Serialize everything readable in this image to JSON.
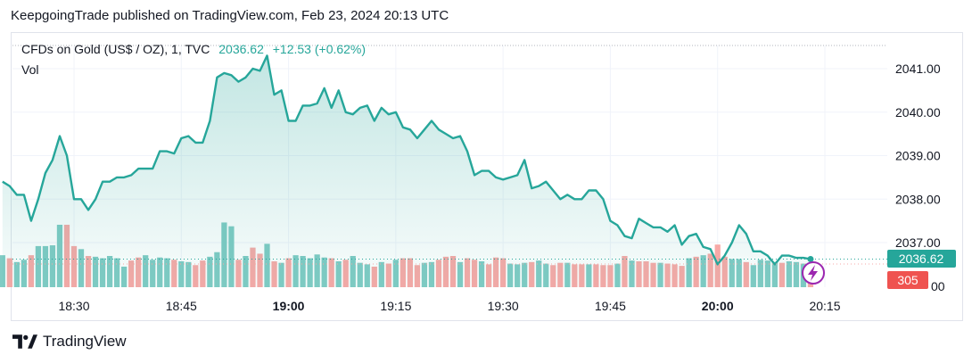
{
  "header": {
    "text": "KeepgoingTrade published on TradingView.com, Feb 23, 2024 20:13 UTC"
  },
  "legend": {
    "symbol": "CFDs on Gold (US$ / OZ), 1, TVC",
    "price": "2036.62",
    "change": "+12.53 (+0.62%)"
  },
  "volume_label": "Vol",
  "footer": {
    "brand": "TradingView",
    "logo_icon": "tradingview-logo-icon"
  },
  "badges": {
    "price": "2036.62",
    "volume": "305",
    "price_color": "#26a69a",
    "volume_color": "#ef5350"
  },
  "colors": {
    "line": "#26a69a",
    "up_volume": "#80cbc4",
    "down_volume": "#f7a9a7",
    "grid": "#f0f3fa"
  },
  "icons": {
    "indicator": "lightning-icon"
  },
  "chart_data": [
    {
      "type": "area",
      "title": "CFDs on Gold (US$ / OZ), 1, TVC",
      "xlabel": "",
      "ylabel": "",
      "x_ticks": [
        "18:30",
        "18:45",
        "19:00",
        "19:15",
        "19:30",
        "19:45",
        "20:00",
        "20:15"
      ],
      "x_ticks_bold": [
        "19:00",
        "20:00"
      ],
      "y_ticks": [
        "2041.00",
        "2040.00",
        "2039.00",
        "2038.00",
        "2037.00"
      ],
      "ylim": [
        2036.0,
        2041.5
      ],
      "grid": true,
      "time_start": "18:20",
      "time_step_minutes": 1,
      "x": [
        "18:20",
        "18:21",
        "18:22",
        "18:23",
        "18:24",
        "18:25",
        "18:26",
        "18:27",
        "18:28",
        "18:29",
        "18:30",
        "18:31",
        "18:32",
        "18:33",
        "18:34",
        "18:35",
        "18:36",
        "18:37",
        "18:38",
        "18:39",
        "18:40",
        "18:41",
        "18:42",
        "18:43",
        "18:44",
        "18:45",
        "18:46",
        "18:47",
        "18:48",
        "18:49",
        "18:50",
        "18:51",
        "18:52",
        "18:53",
        "18:54",
        "18:55",
        "18:56",
        "18:57",
        "18:58",
        "18:59",
        "19:00",
        "19:01",
        "19:02",
        "19:03",
        "19:04",
        "19:05",
        "19:06",
        "19:07",
        "19:08",
        "19:09",
        "19:10",
        "19:11",
        "19:12",
        "19:13",
        "19:14",
        "19:15",
        "19:16",
        "19:17",
        "19:18",
        "19:19",
        "19:20",
        "19:21",
        "19:22",
        "19:23",
        "19:24",
        "19:25",
        "19:26",
        "19:27",
        "19:28",
        "19:29",
        "19:30",
        "19:31",
        "19:32",
        "19:33",
        "19:34",
        "19:35",
        "19:36",
        "19:37",
        "19:38",
        "19:39",
        "19:40",
        "19:41",
        "19:42",
        "19:43",
        "19:44",
        "19:45",
        "19:46",
        "19:47",
        "19:48",
        "19:49",
        "19:50",
        "19:51",
        "19:52",
        "19:53",
        "19:54",
        "19:55",
        "19:56",
        "19:57",
        "19:58",
        "19:59",
        "20:00",
        "20:01",
        "20:02",
        "20:03",
        "20:04",
        "20:05",
        "20:06",
        "20:07",
        "20:08",
        "20:09",
        "20:10",
        "20:11",
        "20:12",
        "20:13"
      ],
      "series": [
        {
          "values": [
            2038.4,
            2038.3,
            2038.1,
            2038.1,
            2037.5,
            2038.0,
            2038.6,
            2038.9,
            2039.45,
            2039.0,
            2038.0,
            2038.0,
            2037.75,
            2038.0,
            2038.4,
            2038.4,
            2038.5,
            2038.5,
            2038.55,
            2038.7,
            2038.7,
            2038.7,
            2039.1,
            2039.1,
            2039.05,
            2039.4,
            2039.45,
            2039.3,
            2039.3,
            2039.8,
            2040.8,
            2040.9,
            2040.85,
            2040.7,
            2040.8,
            2041.0,
            2040.95,
            2041.3,
            2040.4,
            2040.5,
            2039.8,
            2039.8,
            2040.15,
            2040.15,
            2040.2,
            2040.55,
            2040.1,
            2040.5,
            2040.0,
            2039.95,
            2040.1,
            2040.15,
            2039.8,
            2040.1,
            2039.95,
            2040.0,
            2039.65,
            2039.6,
            2039.4,
            2039.6,
            2039.8,
            2039.6,
            2039.5,
            2039.4,
            2039.45,
            2039.1,
            2038.55,
            2038.65,
            2038.65,
            2038.5,
            2038.45,
            2038.5,
            2038.55,
            2038.9,
            2038.25,
            2038.3,
            2038.4,
            2038.2,
            2038.0,
            2038.1,
            2038.0,
            2038.0,
            2038.2,
            2038.2,
            2038.0,
            2037.5,
            2037.4,
            2037.15,
            2037.1,
            2037.55,
            2037.45,
            2037.35,
            2037.35,
            2037.25,
            2037.4,
            2036.95,
            2037.15,
            2037.2,
            2036.9,
            2036.85,
            2036.5,
            2036.7,
            2037.0,
            2037.4,
            2037.2,
            2036.8,
            2036.8,
            2036.7,
            2036.5,
            2036.7,
            2036.7,
            2036.65,
            2036.65,
            2036.62
          ],
          "color": "#26a69a"
        }
      ]
    },
    {
      "type": "bar",
      "title": "Vol",
      "ylim": [
        0,
        1000
      ],
      "categories_ref": "same as price x",
      "last_value": 305,
      "series": [
        {
          "values": [
            420,
            380,
            330,
            360,
            420,
            540,
            540,
            550,
            820,
            820,
            540,
            500,
            410,
            400,
            380,
            410,
            380,
            270,
            350,
            390,
            420,
            360,
            390,
            380,
            360,
            340,
            330,
            290,
            350,
            400,
            460,
            850,
            800,
            360,
            410,
            520,
            440,
            570,
            340,
            320,
            380,
            420,
            410,
            380,
            430,
            390,
            380,
            340,
            360,
            410,
            320,
            300,
            270,
            330,
            310,
            360,
            380,
            380,
            290,
            320,
            330,
            360,
            400,
            410,
            330,
            380,
            360,
            340,
            300,
            390,
            380,
            310,
            300,
            320,
            330,
            350,
            310,
            290,
            320,
            320,
            300,
            300,
            300,
            300,
            290,
            290,
            310,
            410,
            350,
            340,
            340,
            320,
            320,
            310,
            300,
            280,
            380,
            400,
            420,
            440,
            560,
            400,
            370,
            370,
            330,
            290,
            360,
            350,
            330,
            320,
            340,
            330,
            310,
            305
          ],
          "colors": [
            "#80cbc4",
            "#f7a9a7",
            "#80cbc4",
            "#80cbc4",
            "#f7a9a7",
            "#80cbc4",
            "#80cbc4",
            "#80cbc4",
            "#80cbc4",
            "#f7a9a7",
            "#f7a9a7",
            "#80cbc4",
            "#f7a9a7",
            "#80cbc4",
            "#80cbc4",
            "#80cbc4",
            "#80cbc4",
            "#80cbc4",
            "#f7a9a7",
            "#f7a9a7",
            "#80cbc4",
            "#80cbc4",
            "#80cbc4",
            "#80cbc4",
            "#f7a9a7",
            "#80cbc4",
            "#80cbc4",
            "#f7a9a7",
            "#f7a9a7",
            "#80cbc4",
            "#80cbc4",
            "#80cbc4",
            "#80cbc4",
            "#f7a9a7",
            "#80cbc4",
            "#f7a9a7",
            "#f7a9a7",
            "#80cbc4",
            "#f7a9a7",
            "#80cbc4",
            "#f7a9a7",
            "#80cbc4",
            "#80cbc4",
            "#80cbc4",
            "#80cbc4",
            "#80cbc4",
            "#f7a9a7",
            "#80cbc4",
            "#f7a9a7",
            "#80cbc4",
            "#80cbc4",
            "#80cbc4",
            "#f7a9a7",
            "#80cbc4",
            "#f7a9a7",
            "#80cbc4",
            "#f7a9a7",
            "#f7a9a7",
            "#f7a9a7",
            "#80cbc4",
            "#80cbc4",
            "#f7a9a7",
            "#f7a9a7",
            "#f7a9a7",
            "#80cbc4",
            "#f7a9a7",
            "#f7a9a7",
            "#80cbc4",
            "#f7a9a7",
            "#f7a9a7",
            "#f7a9a7",
            "#80cbc4",
            "#80cbc4",
            "#80cbc4",
            "#f7a9a7",
            "#80cbc4",
            "#80cbc4",
            "#f7a9a7",
            "#f7a9a7",
            "#80cbc4",
            "#f7a9a7",
            "#f7a9a7",
            "#80cbc4",
            "#f7a9a7",
            "#f7a9a7",
            "#f7a9a7",
            "#80cbc4",
            "#f7a9a7",
            "#80cbc4",
            "#f7a9a7",
            "#f7a9a7",
            "#f7a9a7",
            "#80cbc4",
            "#f7a9a7",
            "#f7a9a7",
            "#f7a9a7",
            "#80cbc4",
            "#f7a9a7",
            "#80cbc4",
            "#f7a9a7",
            "#f7a9a7",
            "#f7a9a7",
            "#80cbc4",
            "#80cbc4",
            "#f7a9a7",
            "#80cbc4",
            "#80cbc4",
            "#80cbc4",
            "#80cbc4",
            "#f7a9a7",
            "#80cbc4",
            "#80cbc4",
            "#80cbc4",
            "#f7a9a7"
          ]
        }
      ]
    }
  ]
}
